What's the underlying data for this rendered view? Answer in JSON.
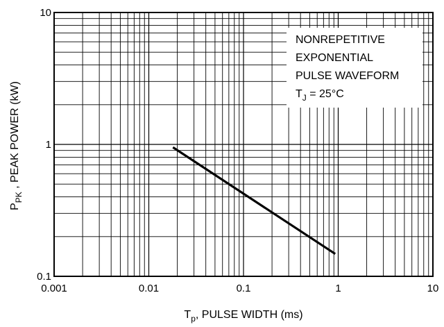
{
  "chart_data": {
    "type": "line",
    "x_scale": "log",
    "y_scale": "log",
    "xlim": [
      0.001,
      10
    ],
    "ylim": [
      0.1,
      10
    ],
    "grid": true,
    "x_ticks": [
      0.001,
      0.01,
      0.1,
      1,
      10
    ],
    "x_tick_labels": [
      "0.001",
      "0.01",
      "0.1",
      "1",
      "10"
    ],
    "y_ticks": [
      0.1,
      1,
      10
    ],
    "y_tick_labels": [
      "0.1",
      "1",
      "10"
    ],
    "xlabel": {
      "main": "T",
      "sub": "p",
      "rest": ", PULSE WIDTH (ms)"
    },
    "ylabel": {
      "main": "P",
      "sub": "PK",
      "rest": " , PEAK POWER (kW)"
    },
    "annotation": {
      "lines": [
        "NONREPETITIVE",
        "EXPONENTIAL",
        "PULSE WAVEFORM"
      ],
      "tj_main": "T",
      "tj_sub": "J",
      "tj_rest": " = 25°C"
    },
    "series": [
      {
        "x": [
          0.018,
          0.93
        ],
        "y": [
          0.95,
          0.148
        ]
      }
    ]
  }
}
